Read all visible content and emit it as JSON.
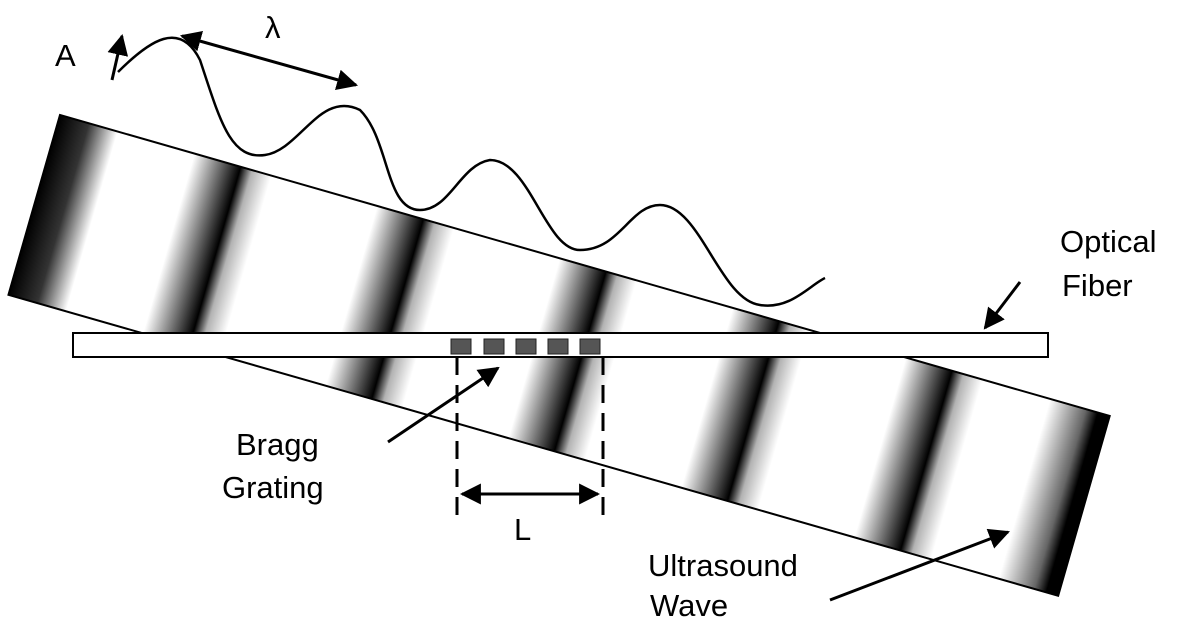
{
  "labels": {
    "amplitude": "A",
    "wavelength": "λ",
    "fiber": [
      "Optical",
      "Fiber"
    ],
    "grating": [
      "Bragg",
      "Grating"
    ],
    "length": "L",
    "wave": [
      "Ultrasound",
      "Wave"
    ]
  }
}
